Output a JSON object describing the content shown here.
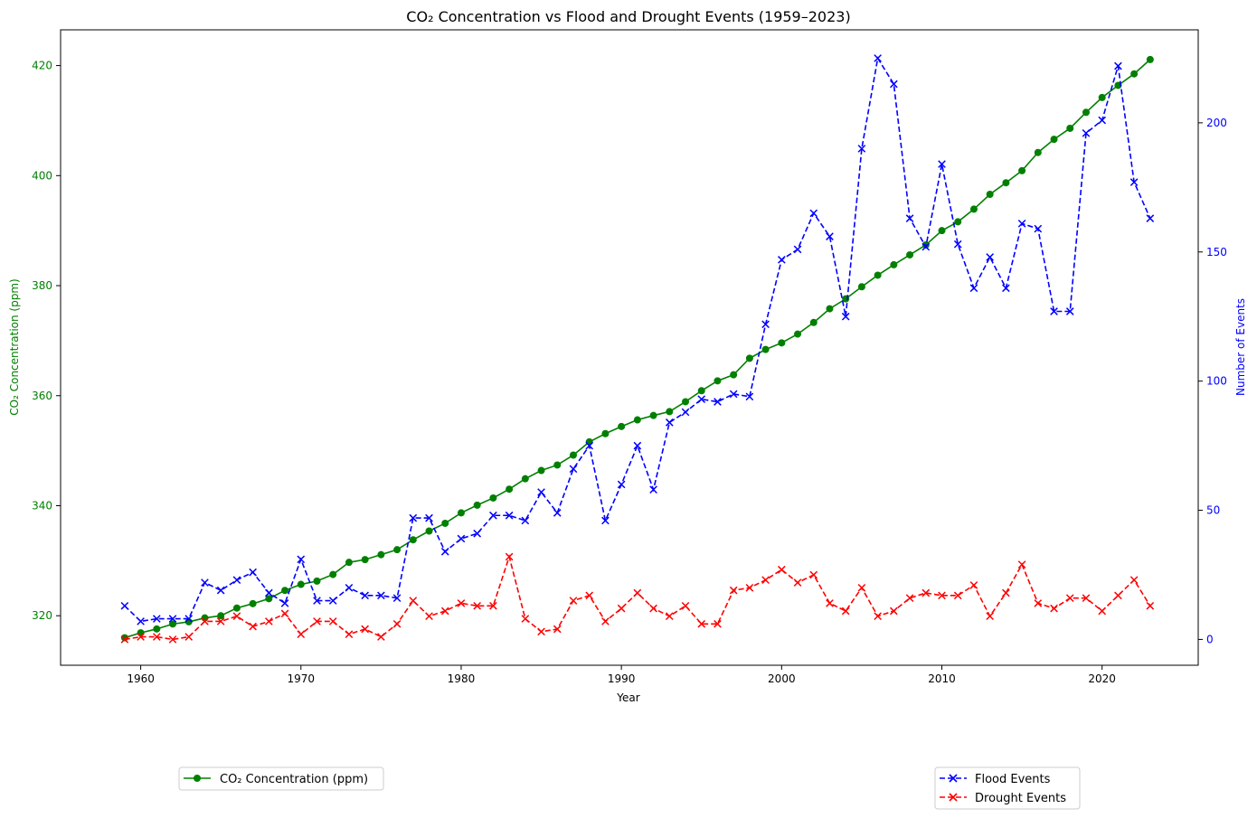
{
  "chart_data": {
    "type": "line",
    "title": "CO₂ Concentration vs Flood and Drought Events (1959–2023)",
    "xlabel": "Year",
    "ylabel_left": "CO₂ Concentration (ppm)",
    "ylabel_right": "Number of Events",
    "xlim": [
      1955,
      2026
    ],
    "ylim_left": [
      311,
      426.5
    ],
    "ylim_right": [
      -10,
      236
    ],
    "x_ticks": [
      1960,
      1970,
      1980,
      1990,
      2000,
      2010,
      2020
    ],
    "y_ticks_left": [
      320,
      340,
      360,
      380,
      400,
      420
    ],
    "y_ticks_right": [
      0,
      50,
      100,
      150,
      200
    ],
    "x": [
      1959,
      1960,
      1961,
      1962,
      1963,
      1964,
      1965,
      1966,
      1967,
      1968,
      1969,
      1970,
      1971,
      1972,
      1973,
      1974,
      1975,
      1976,
      1977,
      1978,
      1979,
      1980,
      1981,
      1982,
      1983,
      1984,
      1985,
      1986,
      1987,
      1988,
      1989,
      1990,
      1991,
      1992,
      1993,
      1994,
      1995,
      1996,
      1997,
      1998,
      1999,
      2000,
      2001,
      2002,
      2003,
      2004,
      2005,
      2006,
      2007,
      2008,
      2009,
      2010,
      2011,
      2012,
      2013,
      2014,
      2015,
      2016,
      2017,
      2018,
      2019,
      2020,
      2021,
      2022,
      2023
    ],
    "series": [
      {
        "name": "CO₂ Concentration (ppm)",
        "axis": "left",
        "color": "#008000",
        "marker": "circle",
        "line_style": "solid",
        "values": [
          316.0,
          316.9,
          317.6,
          318.5,
          318.9,
          319.6,
          320.0,
          321.4,
          322.2,
          323.1,
          324.6,
          325.7,
          326.3,
          327.5,
          329.7,
          330.2,
          331.1,
          332.0,
          333.8,
          335.4,
          336.8,
          338.7,
          340.1,
          341.4,
          343.0,
          344.9,
          346.4,
          347.4,
          349.2,
          351.6,
          353.1,
          354.4,
          355.6,
          356.4,
          357.1,
          358.9,
          360.9,
          362.7,
          363.8,
          366.8,
          368.4,
          369.6,
          371.2,
          373.3,
          375.8,
          377.6,
          379.8,
          381.9,
          383.8,
          385.6,
          387.4,
          390.0,
          391.6,
          393.9,
          396.6,
          398.7,
          400.9,
          404.2,
          406.6,
          408.6,
          411.5,
          414.2,
          416.4,
          418.5,
          421.1
        ]
      },
      {
        "name": "Flood Events",
        "axis": "right",
        "color": "#0000ff",
        "marker": "x",
        "line_style": "dashed",
        "values": [
          13,
          7,
          8,
          8,
          8,
          22,
          19,
          23,
          26,
          18,
          14,
          31,
          15,
          15,
          20,
          17,
          17,
          16,
          47,
          47,
          34,
          39,
          41,
          48,
          48,
          46,
          57,
          49,
          66,
          75,
          46,
          60,
          75,
          58,
          84,
          88,
          93,
          92,
          95,
          94,
          122,
          147,
          151,
          165,
          156,
          125,
          190,
          225,
          215,
          163,
          152,
          184,
          153,
          136,
          148,
          136,
          161,
          159,
          127,
          127,
          196,
          201,
          222,
          177,
          163
        ]
      },
      {
        "name": "Drought Events",
        "axis": "right",
        "color": "#ff0000",
        "marker": "x",
        "line_style": "dashed",
        "values": [
          0,
          1,
          1,
          0,
          1,
          7,
          7,
          9,
          5,
          7,
          10,
          2,
          7,
          7,
          2,
          4,
          1,
          6,
          15,
          9,
          11,
          14,
          13,
          13,
          32,
          8,
          3,
          4,
          15,
          17,
          7,
          12,
          18,
          12,
          9,
          13,
          6,
          6,
          19,
          20,
          23,
          27,
          22,
          25,
          14,
          11,
          20,
          9,
          11,
          16,
          18,
          17,
          17,
          21,
          9,
          18,
          29,
          14,
          12,
          16,
          16,
          11,
          17,
          23,
          13
        ]
      }
    ],
    "legend": {
      "left": [
        "CO₂ Concentration (ppm)"
      ],
      "right": [
        "Flood Events",
        "Drought Events"
      ],
      "placement": "below plot"
    },
    "grid": false
  }
}
